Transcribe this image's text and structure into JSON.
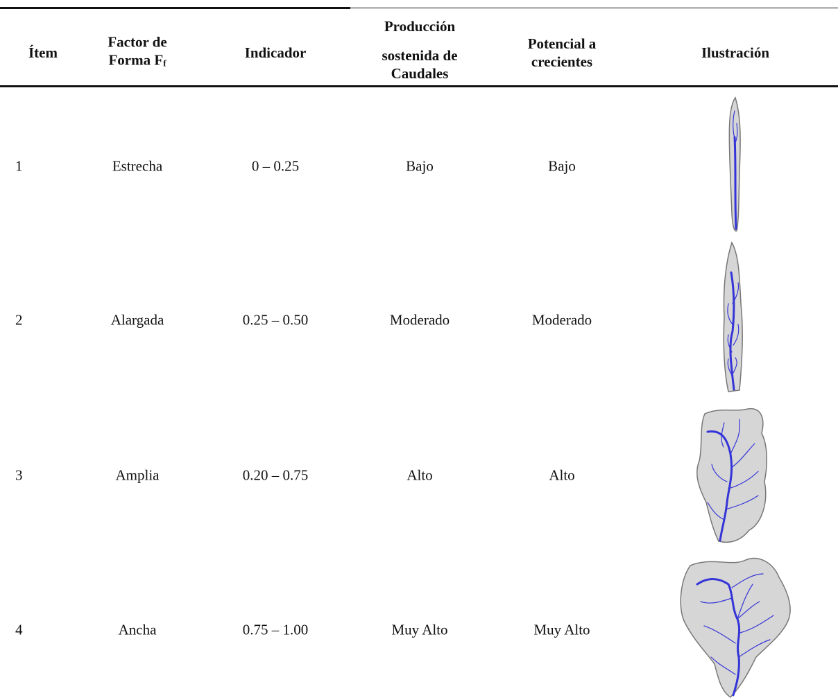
{
  "table": {
    "header": [
      {
        "lines": [
          "Ítem"
        ]
      },
      {
        "lines": [
          "Factor de",
          "Forma F"
        ],
        "subscript": "f"
      },
      {
        "lines": [
          "Indicador"
        ]
      },
      {
        "lines": [
          "Producción",
          "sostenida de",
          "Caudales"
        ]
      },
      {
        "lines": [
          "Potencial a",
          "crecientes"
        ]
      },
      {
        "lines": [
          "Ilustración"
        ]
      }
    ],
    "rows": [
      [
        "1",
        "Estrecha",
        "0 – 0.25",
        "Bajo",
        "Bajo"
      ],
      [
        "2",
        "Alargada",
        "0.25 – 0.50",
        "Moderado",
        "Moderado"
      ],
      [
        "3",
        "Amplia",
        "0.20 – 0.75",
        "Alto",
        "Alto"
      ],
      [
        "4",
        "Ancha",
        "0.75 – 1.00",
        "Muy Alto",
        "Muy Alto"
      ]
    ]
  }
}
